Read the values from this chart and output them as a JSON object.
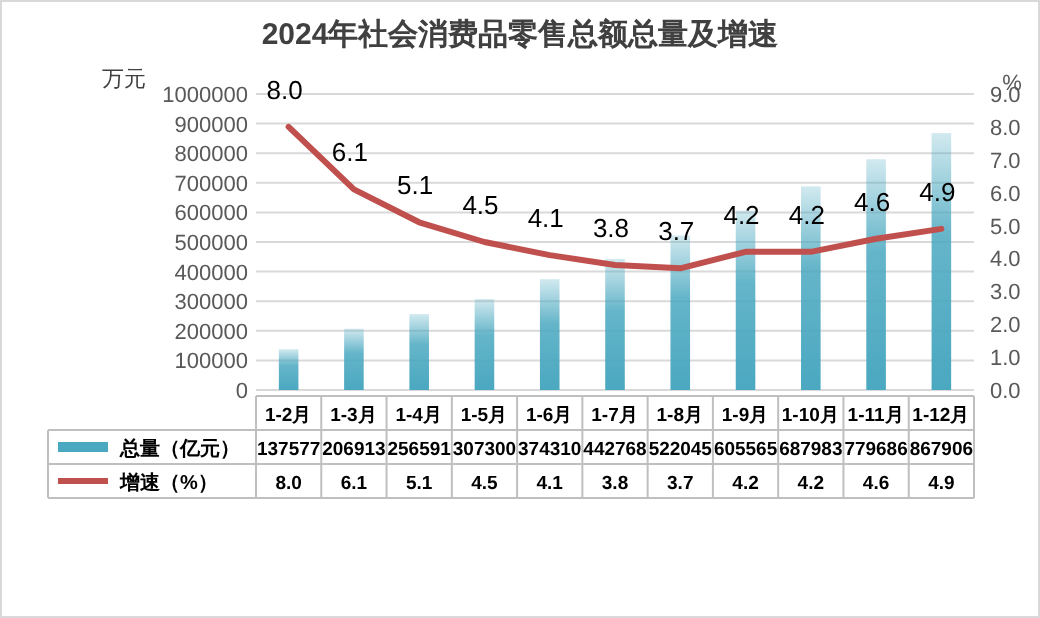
{
  "chart_data": {
    "type": "bar",
    "title": "2024年社会消费品零售总额总量及增速",
    "ylabel": "万元",
    "y2label": "%",
    "categories": [
      "1-2月",
      "1-3月",
      "1-4月",
      "1-5月",
      "1-6月",
      "1-7月",
      "1-8月",
      "1-9月",
      "1-10月",
      "1-11月",
      "1-12月"
    ],
    "series": [
      {
        "name": "总量（亿元）",
        "color": "#4aa8c0",
        "values": [
          137577,
          206913,
          256591,
          307300,
          374310,
          442768,
          522045,
          605565,
          687983,
          779686,
          867906
        ]
      },
      {
        "name": "增速（%）",
        "type": "line",
        "axis": "y2",
        "color": "#c0504d",
        "values": [
          8.0,
          6.1,
          5.1,
          4.5,
          4.1,
          3.8,
          3.7,
          4.2,
          4.2,
          4.6,
          4.9
        ],
        "value_labels": [
          "8.0",
          "6.1",
          "5.1",
          "4.5",
          "4.1",
          "3.8",
          "3.7",
          "4.2",
          "4.2",
          "4.6",
          "4.9"
        ]
      }
    ],
    "ylim": [
      0,
      1000000
    ],
    "yticks": [
      0,
      100000,
      200000,
      300000,
      400000,
      500000,
      600000,
      700000,
      800000,
      900000,
      1000000
    ],
    "y2lim": [
      0,
      9
    ],
    "y2ticks": [
      {
        "value": 0,
        "label": "0.0"
      },
      {
        "value": 1,
        "label": "1.0"
      },
      {
        "value": 2,
        "label": "2.0"
      },
      {
        "value": 3,
        "label": "3.0"
      },
      {
        "value": 4,
        "label": "4.0"
      },
      {
        "value": 5,
        "label": "5.0"
      },
      {
        "value": 6,
        "label": "6.0"
      },
      {
        "value": 7,
        "label": "7.0"
      },
      {
        "value": 8,
        "label": "8.0"
      },
      {
        "value": 9,
        "label": "9.0"
      }
    ],
    "grid": "y",
    "data_labels": true,
    "legend": "bottom"
  }
}
